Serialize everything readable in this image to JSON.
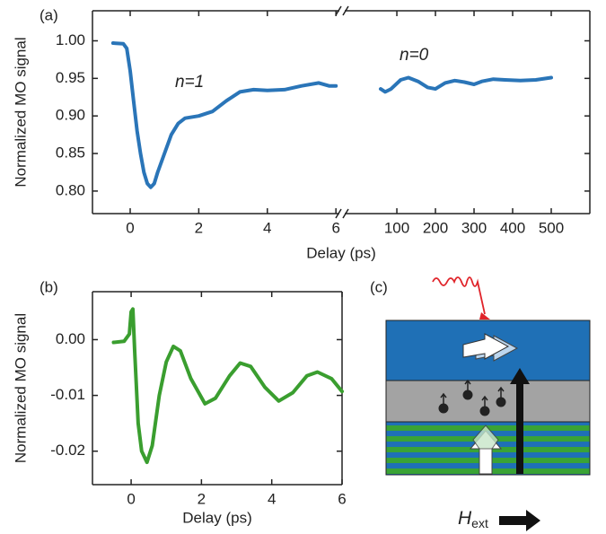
{
  "chart_data": [
    {
      "type": "line",
      "label": "(a)",
      "xlabel": "Delay (ps)",
      "ylabel": "Normalized MO signal",
      "ylim": [
        0.77,
        1.04
      ],
      "yticks": [
        {
          "value": 0.8,
          "label": "0.80"
        },
        0.85,
        {
          "value": 0.9,
          "label": "0.90"
        },
        0.95,
        {
          "value": 1.0,
          "label": "1.00"
        }
      ],
      "xlims": [
        [
          -1.1,
          6.1
        ],
        [
          -35,
          600
        ]
      ],
      "xticks": [
        [
          0,
          2,
          4,
          6
        ],
        [
          100,
          200,
          300,
          400,
          500
        ]
      ],
      "series": [
        {
          "name": "n=1",
          "color": "#2a75b8",
          "x": [
            -0.5,
            -0.2,
            -0.1,
            0,
            0.1,
            0.2,
            0.3,
            0.4,
            0.5,
            0.6,
            0.7,
            0.8,
            1.0,
            1.2,
            1.4,
            1.6,
            2.0,
            2.4,
            2.8,
            3.2,
            3.6,
            4.0,
            4.5,
            5.0,
            5.5,
            5.8,
            6.0
          ],
          "values": [
            0.997,
            0.996,
            0.99,
            0.96,
            0.92,
            0.88,
            0.85,
            0.825,
            0.81,
            0.805,
            0.81,
            0.825,
            0.85,
            0.875,
            0.89,
            0.897,
            0.9,
            0.906,
            0.92,
            0.932,
            0.935,
            0.934,
            0.935,
            0.94,
            0.944,
            0.94,
            0.94
          ]
        },
        {
          "name": "n=0",
          "color": "#2a75b8",
          "x": [
            58,
            70,
            85,
            110,
            130,
            155,
            180,
            200,
            225,
            250,
            275,
            300,
            320,
            350,
            380,
            420,
            460,
            500
          ],
          "values": [
            0.936,
            0.932,
            0.936,
            0.948,
            0.951,
            0.946,
            0.938,
            0.936,
            0.944,
            0.947,
            0.945,
            0.942,
            0.946,
            0.949,
            0.948,
            0.947,
            0.948,
            0.951
          ]
        }
      ]
    },
    {
      "type": "line",
      "label": "(b)",
      "xlabel": "Delay (ps)",
      "ylabel": "Normalized MO signal",
      "ylim": [
        -0.026,
        0.0086
      ],
      "yticks": [
        -0.02,
        -0.01,
        {
          "value": 0,
          "label": "0.00"
        }
      ],
      "xlims": [
        [
          -1.1,
          6
        ]
      ],
      "xticks": [
        [
          0,
          2,
          4,
          6
        ]
      ],
      "series": [
        {
          "color": "#3a9e2f",
          "x": [
            -0.5,
            -0.2,
            -0.05,
            0,
            0.05,
            0.1,
            0.2,
            0.3,
            0.45,
            0.6,
            0.8,
            1.0,
            1.2,
            1.4,
            1.7,
            2.1,
            2.4,
            2.8,
            3.1,
            3.4,
            3.8,
            4.2,
            4.6,
            5.0,
            5.3,
            5.7,
            6.0
          ],
          "values": [
            -0.0005,
            -0.0003,
            0.001,
            0.005,
            0.0055,
            -0.002,
            -0.015,
            -0.02,
            -0.022,
            -0.019,
            -0.01,
            -0.004,
            -0.0012,
            -0.002,
            -0.007,
            -0.0115,
            -0.0105,
            -0.0065,
            -0.0042,
            -0.0048,
            -0.0085,
            -0.011,
            -0.0095,
            -0.0065,
            -0.0058,
            -0.007,
            -0.0093
          ]
        }
      ]
    },
    {
      "type": "diagram",
      "label": "(c)",
      "field_label": "H",
      "field_subscript": "ext"
    }
  ]
}
